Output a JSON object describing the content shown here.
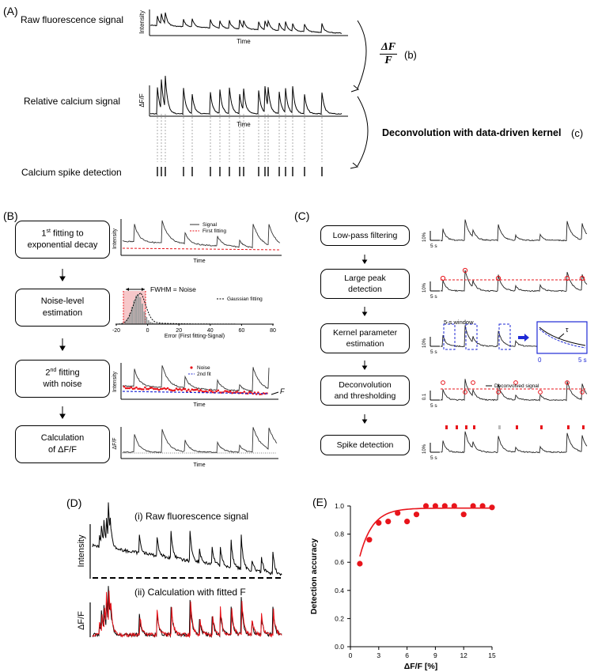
{
  "panels": {
    "A": {
      "label": "(A)",
      "raw_label": "Raw fluorescence signal",
      "relative_label": "Relative calcium signal",
      "spike_label": "Calcium spike detection",
      "y_raw": "Intensity",
      "y_rel": "ΔF/F",
      "x_time": "Time",
      "formula_num": "ΔF",
      "formula_den": "F",
      "step_b": "(b)",
      "deconv": "Deconvolution with data-driven kernel",
      "step_c": "(c)"
    },
    "B": {
      "label": "(B)",
      "steps": [
        {
          "pre": "1",
          "sup": "st",
          "post": " fitting to",
          "line2": "exponential decay"
        },
        {
          "line1": "Noise-level",
          "line2": "estimation"
        },
        {
          "pre": "2",
          "sup": "nd",
          "post": " fitting",
          "line2": "with noise"
        },
        {
          "line1": "Calculation",
          "line2": "of ΔF/F"
        }
      ],
      "plot1": {
        "ylabel": "Intensity",
        "xlabel": "Time",
        "legend_signal": "Signal",
        "legend_fit": "First fitting"
      },
      "plot2": {
        "fwhm": "FWHM = Noise",
        "legend": "Gaussian fitting",
        "xlabel": "Error (First fitting-Signal)",
        "ticks": [
          "-20",
          "0",
          "20",
          "40",
          "60",
          "80"
        ]
      },
      "plot3": {
        "ylabel": "Intensity",
        "xlabel": "Time",
        "legend_noise": "Noise",
        "legend_fit": "2nd fit",
        "f_label": "F"
      },
      "plot4": {
        "ylabel": "ΔF/F",
        "xlabel": "Time"
      }
    },
    "C": {
      "label": "(C)",
      "steps": [
        "Low-pass filtering",
        "Large peak detection",
        "Kernel parameter estimation",
        "Deconvolution and thresholding",
        "Spike detection"
      ],
      "steps_split": [
        [
          "Low-pass filtering"
        ],
        [
          "Large peak",
          "detection"
        ],
        [
          "Kernel parameter",
          "estimation"
        ],
        [
          "Deconvolution",
          "and thresholding"
        ],
        [
          "Spike detection"
        ]
      ],
      "scale_pct": "10%",
      "scale_time": "5 s",
      "scale_01": "0.1",
      "window_label": "5-s window",
      "tau": "τ",
      "inset_x0": "0",
      "inset_x1": "5 s",
      "deconv_legend": "Deconvolved signal"
    },
    "D": {
      "label": "(D)",
      "title1": "(i) Raw fluorescence signal",
      "title2": "(ii) Calculation with fitted F",
      "ylabel1": "Intensity",
      "ylabel2": "ΔF/F"
    },
    "E": {
      "label": "(E)",
      "ylabel": "Detection accuracy",
      "xlabel": "ΔF/F [%]",
      "xticks": [
        "0",
        "3",
        "6",
        "9",
        "12",
        "15"
      ],
      "yticks": [
        "0.0",
        "0.2",
        "0.4",
        "0.6",
        "0.8",
        "1.0"
      ]
    }
  },
  "chart_data": {
    "type": "scatter",
    "xlabel": "ΔF/F [%]",
    "ylabel": "Detection accuracy",
    "xlim": [
      0,
      15
    ],
    "ylim": [
      0,
      1.0
    ],
    "grid": false,
    "points": {
      "x": [
        1,
        2,
        3,
        4,
        5,
        6,
        7,
        8,
        9,
        10,
        11,
        12,
        13,
        14,
        15
      ],
      "y": [
        0.59,
        0.76,
        0.88,
        0.89,
        0.95,
        0.89,
        0.94,
        1.0,
        1.0,
        1.0,
        1.0,
        0.94,
        1.0,
        1.0,
        0.99
      ]
    },
    "marker_color": "#e8141b",
    "fit_color": "#e8141b"
  },
  "colors": {
    "red": "#e8141b",
    "blue": "#1f2ad6",
    "pink": "#f7c7c9"
  }
}
